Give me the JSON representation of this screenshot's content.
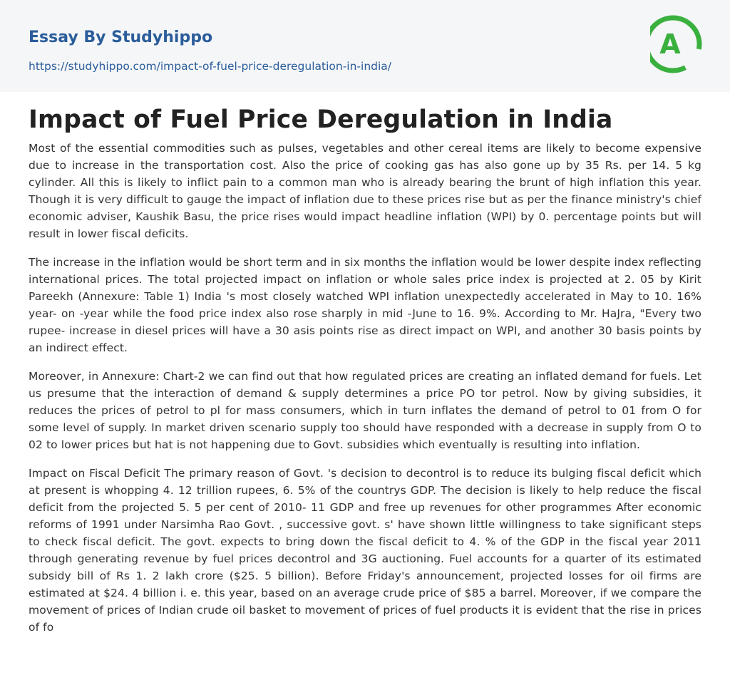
{
  "header": {
    "site_name": "Essay By Studyhippo",
    "url": "https://studyhippo.com/impact-of-fuel-price-deregulation-in-india/",
    "logo": {
      "letter": "A",
      "icon": "studyhippo-logo-icon",
      "ring_color": "#3ab03e",
      "bg": "#f5f6f8"
    }
  },
  "colors": {
    "header_bg": "#f5f6f8",
    "link": "#2b5d9b",
    "title": "#222222",
    "body_text": "#333333"
  },
  "article": {
    "title": "Impact of Fuel Price Deregulation in India",
    "paragraphs": [
      "Most of the essential commodities such as pulses, vegetables and other cereal items are likely to become expensive due to increase in the transportation cost. Also the price of cooking gas has also gone up by 35 Rs. per 14. 5 kg cylinder. All this is likely to inflict pain to a common man who is already bearing the brunt of high inflation this year. Though it is very difficult to gauge the impact of inflation due to these prices rise but as per the finance ministry's chief economic adviser, Kaushik Basu, the price rises would impact headline inflation (WPI) by 0. percentage points but will result in lower fiscal deficits.",
      "The increase in the inflation would be short term and in six months the inflation would be lower despite index reflecting international prices. The total projected impact on inflation or whole sales price index is projected at 2. 05 by Kirit Pareekh (Annexure: Table 1) India 's most closely watched WPI inflation unexpectedly accelerated in May to 10. 16% year- on -year while the food price index also rose sharply in mid -June to 16. 9%. According to Mr. HaJra, \"Every two rupee- increase in diesel prices will have a 30 asis points rise as direct impact on WPI, and another 30 basis points by an indirect effect.",
      "Moreover, in Annexure: Chart-2 we can find out that how regulated prices are creating an inflated demand for fuels. Let us presume that the interaction of demand & supply determines a price PO tor petrol. Now by giving subsidies, it reduces the prices of petrol to pl for mass consumers, which in turn inflates the demand of petrol to 01 from O for some level of supply. In market driven scenario supply too should have responded with a decrease in supply from O to 02 to lower prices but hat is not happening due to Govt. subsidies which eventually is resulting into inflation.",
      "Impact on Fiscal Deficit The primary reason of Govt. 's decision to decontrol is to reduce its bulging fiscal deficit which at present is whopping 4. 12 trillion rupees, 6. 5% of the countrys GDP. The decision is likely to help reduce the fiscal deficit from the projected 5. 5 per cent of 2010- 11 GDP and free up revenues for other programmes After economic reforms of 1991 under Narsimha Rao Govt. , successive govt. s' have shown little willingness to take significant steps to check fiscal deficit. The govt. expects to bring down the fiscal deficit to 4. % of the GDP in the fiscal year 2011 through generating revenue by fuel prices decontrol and 3G auctioning. Fuel accounts for a quarter of its estimated subsidy bill of Rs 1. 2 lakh crore ($25. 5 billion). Before Friday's announcement, projected losses for oil firms are estimated at $24. 4 billion i. e. this year, based on an average crude price of $85 a barrel. Moreover, if we compare the movement of prices of Indian crude oil basket to movement of prices of fuel products it is evident that the rise in prices of fo"
    ]
  }
}
